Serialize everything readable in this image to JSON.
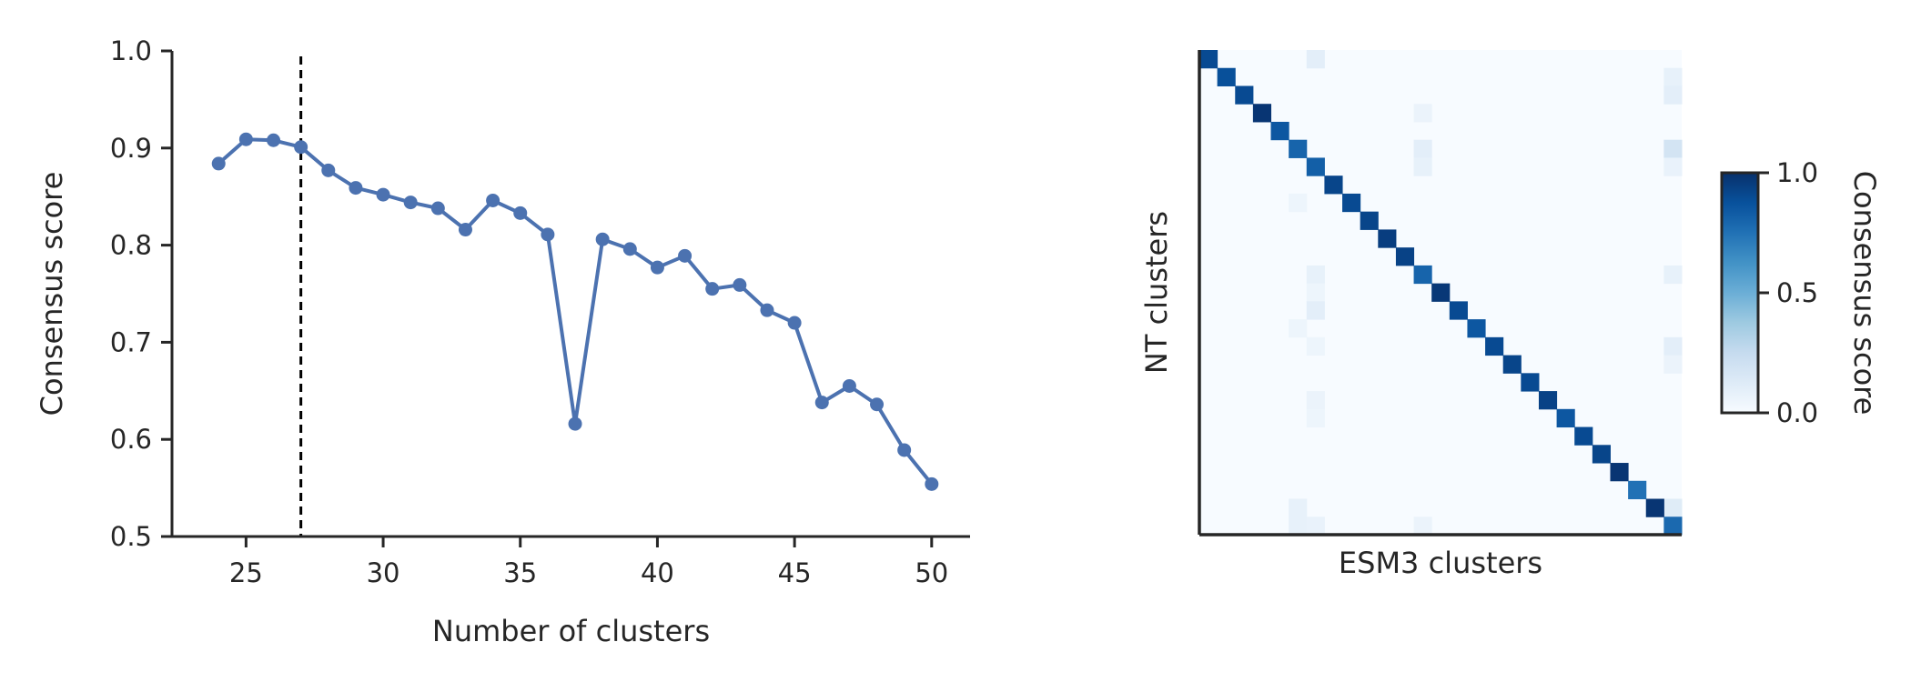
{
  "chart_data": [
    {
      "type": "line",
      "xlabel": "Number of clusters",
      "ylabel": "Consensus score",
      "xlim": [
        22.3,
        51.4
      ],
      "ylim": [
        0.5,
        1.0
      ],
      "xticks": [
        25,
        30,
        35,
        40,
        45,
        50
      ],
      "yticks": [
        0.5,
        0.6,
        0.7,
        0.8,
        0.9,
        1.0
      ],
      "xtick_labels": [
        "25",
        "30",
        "35",
        "40",
        "45",
        "50"
      ],
      "ytick_labels": [
        "0.5",
        "0.6",
        "0.7",
        "0.8",
        "0.9",
        "1.0"
      ],
      "grid": false,
      "marker": "circle",
      "color": "#4c72b0",
      "reference_line": {
        "x": 27,
        "style": "dashed",
        "color": "#000000"
      },
      "x": [
        24,
        25,
        26,
        27,
        28,
        29,
        30,
        31,
        32,
        33,
        34,
        35,
        36,
        37,
        38,
        39,
        40,
        41,
        42,
        43,
        44,
        45,
        46,
        47,
        48,
        49,
        50
      ],
      "y": [
        0.884,
        0.909,
        0.908,
        0.901,
        0.877,
        0.859,
        0.852,
        0.844,
        0.838,
        0.816,
        0.846,
        0.833,
        0.811,
        0.616,
        0.806,
        0.796,
        0.777,
        0.789,
        0.755,
        0.759,
        0.733,
        0.72,
        0.638,
        0.655,
        0.636,
        0.589,
        0.554
      ]
    },
    {
      "type": "heatmap",
      "xlabel": "ESM3 clusters",
      "ylabel": "NT clusters",
      "n_rows": 27,
      "n_cols": 27,
      "colormap": "Blues",
      "colormap_stops": [
        "#f7fbff",
        "#deebf7",
        "#c6dbef",
        "#9ecae1",
        "#6baed6",
        "#4292c6",
        "#2171b5",
        "#08519c",
        "#08306b"
      ],
      "vmin": 0.0,
      "vmax": 1.0,
      "diagonal": [
        0.9,
        0.88,
        0.9,
        0.98,
        0.85,
        0.8,
        0.82,
        0.92,
        0.9,
        0.92,
        0.95,
        0.93,
        0.8,
        0.97,
        0.9,
        0.85,
        0.9,
        0.92,
        0.9,
        0.93,
        0.85,
        0.9,
        0.92,
        0.98,
        0.75,
        0.98,
        0.78
      ],
      "off_diagonal": [
        [
          0,
          6,
          0.1
        ],
        [
          3,
          12,
          0.06
        ],
        [
          5,
          12,
          0.1
        ],
        [
          6,
          12,
          0.08
        ],
        [
          8,
          5,
          0.05
        ],
        [
          12,
          6,
          0.08
        ],
        [
          13,
          6,
          0.05
        ],
        [
          14,
          6,
          0.1
        ],
        [
          15,
          5,
          0.05
        ],
        [
          16,
          6,
          0.05
        ],
        [
          19,
          6,
          0.06
        ],
        [
          20,
          6,
          0.05
        ],
        [
          25,
          5,
          0.08
        ],
        [
          26,
          5,
          0.08
        ],
        [
          26,
          6,
          0.07
        ],
        [
          26,
          12,
          0.06
        ],
        [
          1,
          26,
          0.08
        ],
        [
          2,
          26,
          0.1
        ],
        [
          5,
          26,
          0.18
        ],
        [
          6,
          26,
          0.07
        ],
        [
          12,
          26,
          0.08
        ],
        [
          16,
          26,
          0.1
        ],
        [
          17,
          26,
          0.06
        ],
        [
          25,
          26,
          0.12
        ]
      ],
      "colorbar": {
        "label": "Consensus score",
        "ticks": [
          0.0,
          0.5,
          1.0
        ],
        "tick_labels": [
          "0.0",
          "0.5",
          "1.0"
        ]
      }
    }
  ]
}
